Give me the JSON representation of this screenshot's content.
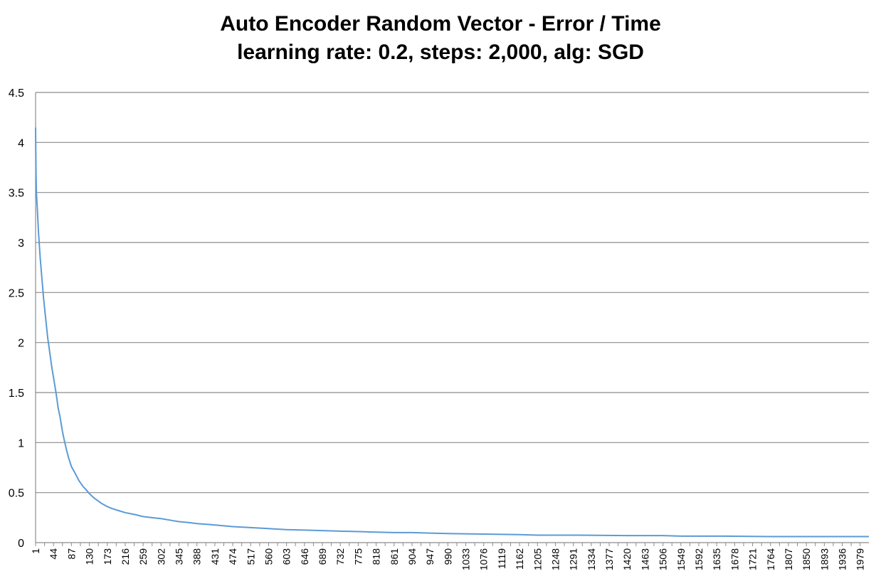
{
  "chart_data": {
    "type": "line",
    "title": "Auto Encoder Random Vector - Error / Time",
    "subtitle": "learning rate: 0.2, steps: 2,000, alg: SGD",
    "xlabel": "",
    "ylabel": "",
    "ylim": [
      0,
      4.5
    ],
    "yticks": [
      "0",
      "0.5",
      "1",
      "1.5",
      "2",
      "2.5",
      "3",
      "3.5",
      "4",
      "4.5"
    ],
    "xlim": [
      1,
      2000
    ],
    "xticks": [
      "1",
      "44",
      "87",
      "130",
      "173",
      "216",
      "259",
      "302",
      "345",
      "388",
      "431",
      "474",
      "517",
      "560",
      "603",
      "646",
      "689",
      "732",
      "775",
      "818",
      "861",
      "904",
      "947",
      "990",
      "1033",
      "1076",
      "1119",
      "1162",
      "1205",
      "1248",
      "1291",
      "1334",
      "1377",
      "1420",
      "1463",
      "1506",
      "1549",
      "1592",
      "1635",
      "1678",
      "1721",
      "1764",
      "1807",
      "1850",
      "1893",
      "1936",
      "1979"
    ],
    "grid": true,
    "legend": "none",
    "series": [
      {
        "color": "#5b9bd5",
        "x": [
          1,
          2,
          3,
          5,
          8,
          12,
          16,
          20,
          25,
          30,
          35,
          40,
          44,
          50,
          55,
          60,
          65,
          70,
          75,
          80,
          87,
          95,
          105,
          115,
          122,
          130,
          140,
          150,
          160,
          173,
          185,
          200,
          216,
          240,
          259,
          280,
          302,
          330,
          345,
          370,
          388,
          420,
          474,
          517,
          560,
          603,
          646,
          689,
          732,
          775,
          818,
          861,
          904,
          947,
          1000,
          1076,
          1162,
          1205,
          1300,
          1420,
          1506,
          1549,
          1650,
          1764,
          1850,
          1979,
          2000
        ],
        "y": [
          4.15,
          3.7,
          3.5,
          3.35,
          3.1,
          2.85,
          2.65,
          2.45,
          2.25,
          2.05,
          1.9,
          1.75,
          1.65,
          1.5,
          1.35,
          1.25,
          1.12,
          1.02,
          0.93,
          0.85,
          0.76,
          0.7,
          0.62,
          0.56,
          0.53,
          0.49,
          0.45,
          0.42,
          0.39,
          0.36,
          0.34,
          0.32,
          0.3,
          0.28,
          0.26,
          0.25,
          0.24,
          0.22,
          0.21,
          0.2,
          0.19,
          0.18,
          0.16,
          0.15,
          0.14,
          0.13,
          0.125,
          0.12,
          0.115,
          0.11,
          0.105,
          0.1,
          0.1,
          0.095,
          0.09,
          0.085,
          0.08,
          0.075,
          0.075,
          0.07,
          0.07,
          0.065,
          0.065,
          0.06,
          0.06,
          0.06,
          0.06
        ]
      }
    ]
  }
}
